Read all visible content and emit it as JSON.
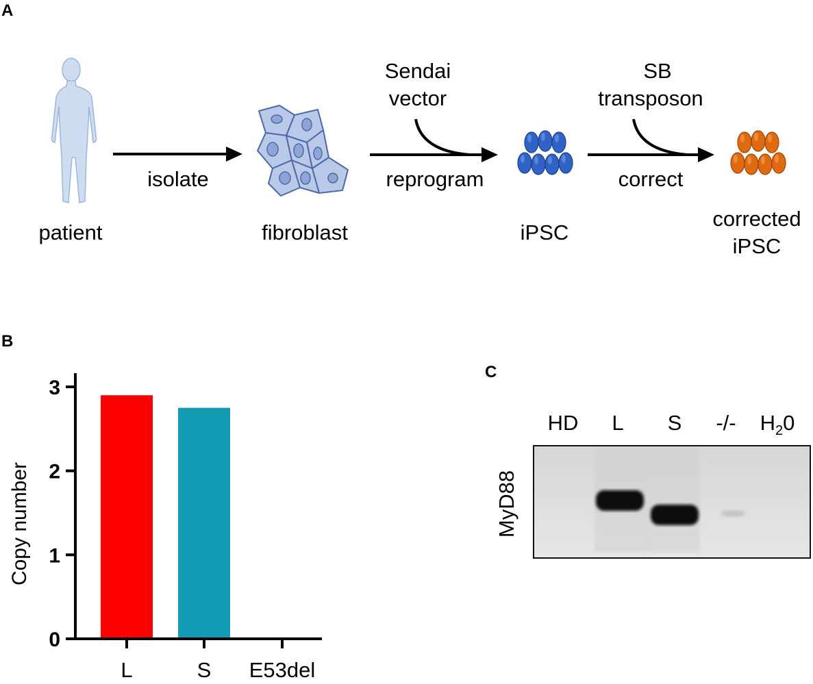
{
  "panel_a": {
    "letter": "A",
    "stages": [
      {
        "id": "patient",
        "label": "patient",
        "icon": "human-figure-icon"
      },
      {
        "id": "fibroblast",
        "label": "fibroblast",
        "icon": "fibroblast-cells-icon"
      },
      {
        "id": "ipsc",
        "label": "iPSC",
        "icon": "ipsc-colony-icon"
      },
      {
        "id": "corrected",
        "label_line1": "corrected",
        "label_line2": "iPSC",
        "icon": "corrected-ipsc-colony-icon"
      }
    ],
    "steps": [
      {
        "below": "isolate"
      },
      {
        "above_line1": "Sendai",
        "above_line2": "vector",
        "below": "reprogram"
      },
      {
        "above_line1": "SB",
        "above_line2": "transposon",
        "below": "correct"
      }
    ],
    "colors": {
      "patient": "#c9d9ee",
      "fibroblast": "#b8c8e6",
      "ipsc": "#2f63c6",
      "corrected": "#e06a10"
    }
  },
  "panel_b": {
    "letter": "B",
    "chart_data": {
      "type": "bar",
      "categories": [
        "L",
        "S",
        "E53del"
      ],
      "values": [
        2.9,
        2.75,
        0
      ],
      "colors": [
        "#ff0000",
        "#139bb3",
        "#888888"
      ],
      "ylabel": "Copy number",
      "ylim": [
        0,
        3
      ],
      "yticks": [
        0,
        1,
        2,
        3
      ],
      "grid": false
    }
  },
  "panel_c": {
    "letter": "C",
    "gel_label": "MyD88",
    "lanes": [
      {
        "label": "HD"
      },
      {
        "label": "L"
      },
      {
        "label": "S"
      },
      {
        "label": "-/-"
      },
      {
        "label_main": "H",
        "label_sub": "2",
        "label_end": "0"
      }
    ]
  }
}
